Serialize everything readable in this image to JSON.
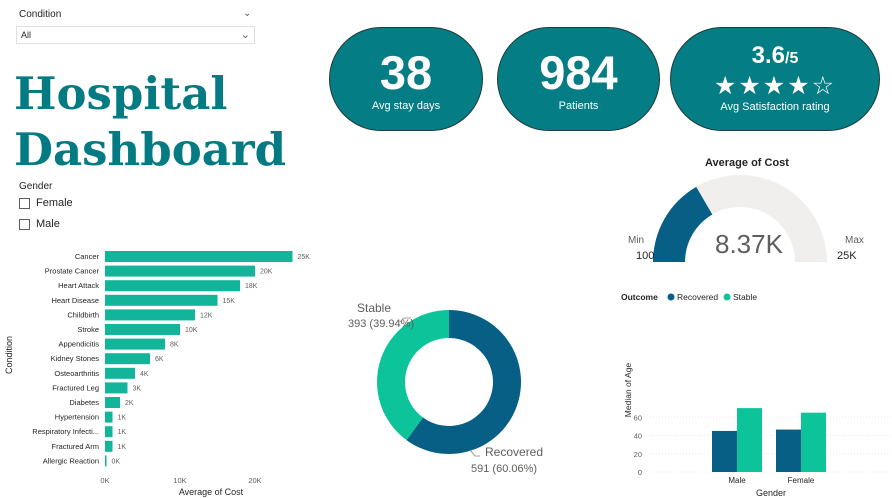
{
  "condition_slicer": {
    "title": "Condition",
    "selected": "All"
  },
  "dashboard_title": {
    "line1": "Hospital",
    "line2": "Dashboard"
  },
  "gender_slicer": {
    "title": "Gender",
    "options": [
      "Female",
      "Male"
    ]
  },
  "kpis": {
    "stay": {
      "value": "38",
      "label": "Avg stay days"
    },
    "patients": {
      "value": "984",
      "label": "Patients"
    },
    "satisfaction": {
      "value": "3.6",
      "denominator": "/5",
      "stars": "★★★★☆",
      "label": "Avg Satisfaction rating"
    }
  },
  "colors": {
    "teal_dark": "#057d85",
    "bar_teal": "#12b59a",
    "navy": "#075f86",
    "mint": "#0cc39a",
    "gauge_bg": "#f0efee"
  },
  "gauge": {
    "title": "Average of Cost",
    "value_label": "8.37K",
    "value": 8370,
    "min_label": "Min",
    "min_value": "100",
    "max_label": "Max",
    "max_value": "25K",
    "min": 100,
    "max": 25000
  },
  "bar_chart": {
    "xlabel": "Average of Cost",
    "ylabel": "Condition"
  },
  "donut": {
    "title": ""
  },
  "column_chart": {
    "legend_title": "Outcome"
  },
  "chart_data": [
    {
      "type": "bar",
      "title": "",
      "xlabel": "Average of Cost",
      "ylabel": "Condition",
      "categories": [
        "Cancer",
        "Prostate Cancer",
        "Heart Attack",
        "Heart Disease",
        "Childbirth",
        "Stroke",
        "Appendicitis",
        "Kidney Stones",
        "Osteoarthritis",
        "Fractured Leg",
        "Diabetes",
        "Hypertension",
        "Respiratory Infecti...",
        "Fractured Arm",
        "Allergic Reaction"
      ],
      "values": [
        25000,
        20000,
        18000,
        15000,
        12000,
        10000,
        8000,
        6000,
        4000,
        3000,
        2000,
        1000,
        1000,
        1000,
        100
      ],
      "data_labels": [
        "25K",
        "20K",
        "18K",
        "15K",
        "12K",
        "10K",
        "8K",
        "6K",
        "4K",
        "3K",
        "2K",
        "1K",
        "1K",
        "1K",
        "0K"
      ],
      "xticks": [
        "0K",
        "10K",
        "20K"
      ],
      "xlim": [
        0,
        30000
      ],
      "grid": false
    },
    {
      "type": "pie",
      "title": "",
      "categories": [
        "Recovered",
        "Stable"
      ],
      "values": [
        591,
        393
      ],
      "labels": [
        {
          "name": "Recovered",
          "detail": "591 (60.06%)"
        },
        {
          "name": "Stable",
          "detail": "393 (39.94%)"
        }
      ],
      "donut": true
    },
    {
      "type": "bar",
      "title": "",
      "xlabel": "Gender",
      "ylabel": "Median of Age",
      "categories": [
        "Male",
        "Female"
      ],
      "series": [
        {
          "name": "Recovered",
          "values": [
            45,
            46.5
          ]
        },
        {
          "name": "Stable",
          "values": [
            70,
            65
          ]
        }
      ],
      "yticks": [
        "0",
        "20",
        "40",
        "60"
      ],
      "ylim": [
        0,
        75
      ],
      "legend_title": "Outcome",
      "legend_position": "top-left",
      "grid": true
    }
  ]
}
